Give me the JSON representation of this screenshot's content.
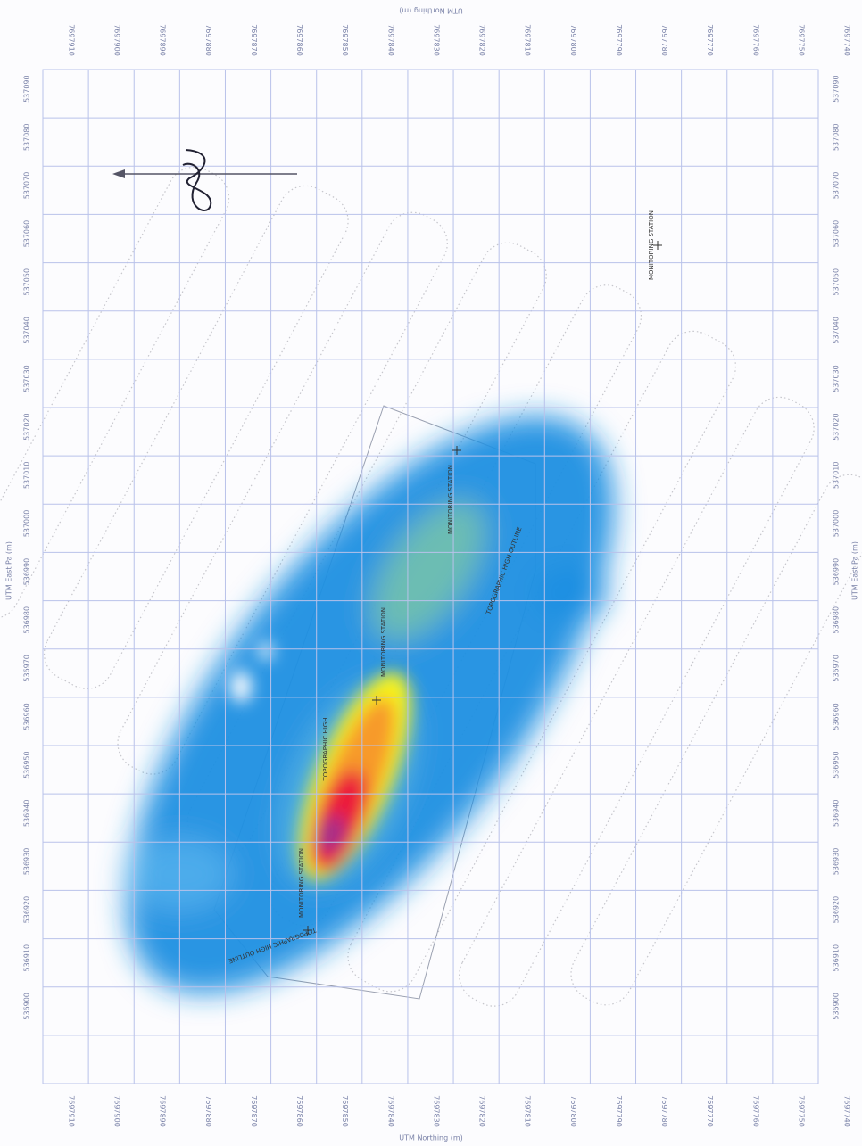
{
  "map": {
    "axis_labels": {
      "top": "UTM Northing (m)",
      "left": "UTM East Pa (m)",
      "right": "UTM East Pa (m)",
      "bottom": "UTM Northing (m)"
    },
    "northing_ticks": [
      "7697910",
      "7697900",
      "7697890",
      "7697880",
      "7697870",
      "7697860",
      "7697850",
      "7697840",
      "7697830",
      "7697820",
      "7697810",
      "7697800",
      "7697790",
      "7697780",
      "7697770",
      "7697760",
      "7697750",
      "7697740"
    ],
    "easting_ticks": [
      "537090",
      "537080",
      "537070",
      "537060",
      "537050",
      "537040",
      "537030",
      "537020",
      "537010",
      "537000",
      "536990",
      "536980",
      "536970",
      "536960",
      "536950",
      "536940",
      "536930",
      "536920",
      "536910",
      "536900"
    ],
    "annotations": [
      "MONITORING STATION",
      "MONITORING STATION",
      "MONITORING STATION",
      "MONITORING STATION",
      "TOPOGRAPHIC HIGH",
      "TOPOGRAPHIC HIGH OUTLINE",
      "TOPOGRAPHIC HIGH OUTLINE"
    ]
  }
}
